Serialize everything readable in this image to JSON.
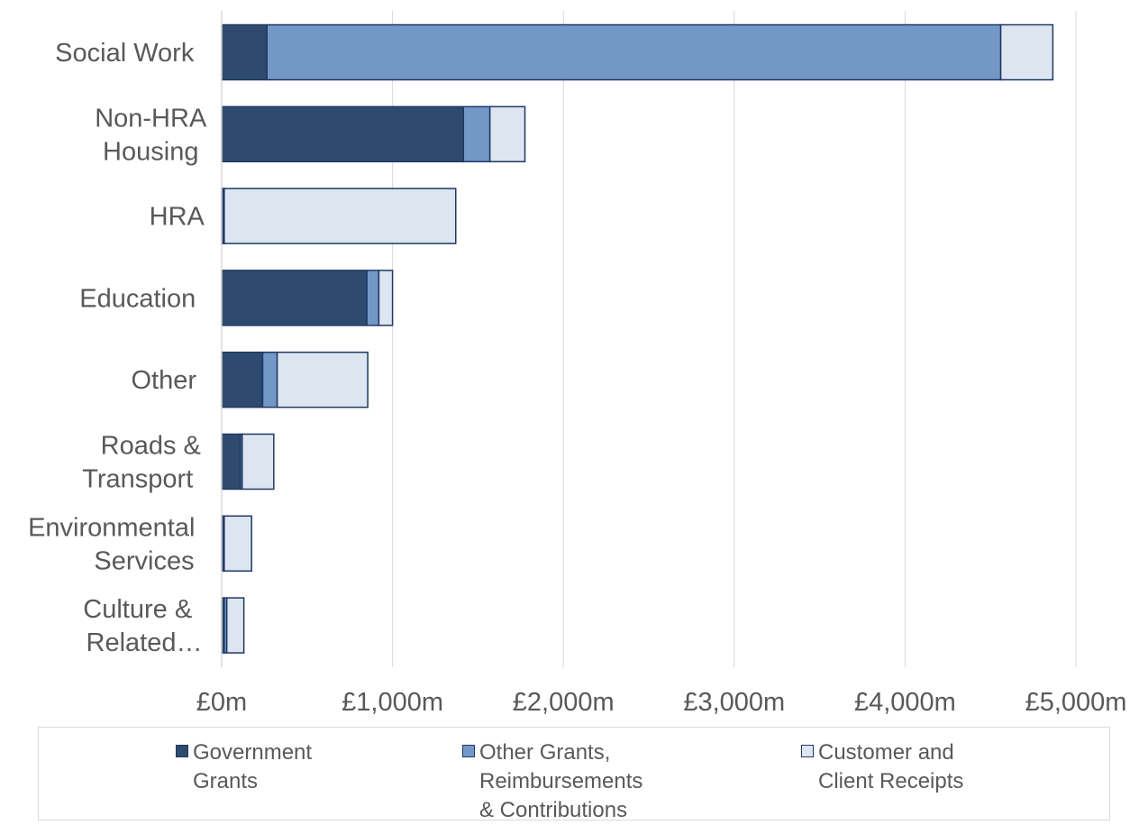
{
  "chart_data": {
    "type": "bar",
    "orientation": "horizontal",
    "stacked": true,
    "title": "",
    "xlabel": "",
    "ylabel": "",
    "categories": [
      "Social Work",
      "Non-HRA Housing",
      "HRA",
      "Education",
      "Other",
      "Roads & Transport",
      "Environmental Services",
      "Culture & Related…"
    ],
    "category_display": [
      [
        "Social Work"
      ],
      [
        "Non-HRA",
        "Housing"
      ],
      [
        "HRA"
      ],
      [
        "Education"
      ],
      [
        "Other"
      ],
      [
        "Roads &",
        "Transport"
      ],
      [
        "Environmental",
        "Services"
      ],
      [
        "Culture &",
        "Related…"
      ]
    ],
    "series": [
      {
        "name": "Government Grants",
        "color": "#2e4a6f",
        "values": [
          265,
          1415,
          10,
          850,
          240,
          110,
          10,
          15
        ]
      },
      {
        "name": "Other Grants, Reimbursements & Contributions",
        "color": "#7398c8",
        "values": [
          4295,
          155,
          5,
          70,
          85,
          10,
          5,
          15
        ]
      },
      {
        "name": "Customer and Client Receipts",
        "color": "#dde5f0",
        "values": [
          305,
          205,
          1355,
          80,
          530,
          185,
          160,
          100
        ]
      }
    ],
    "xlim": [
      0,
      5000
    ],
    "xticks": [
      0,
      1000,
      2000,
      3000,
      4000,
      5000
    ],
    "tick_labels": [
      "£0m",
      "£1,000m",
      "£2,000m",
      "£3,000m",
      "£4,000m",
      "£5,000m"
    ],
    "grid": true,
    "legend_position": "bottom",
    "legend_labels": [
      "Government\nGrants",
      "Other Grants,\nReimbursements\n& Contributions",
      "Customer and\nClient Receipts"
    ],
    "bar_outline_color": "#1f3864"
  }
}
